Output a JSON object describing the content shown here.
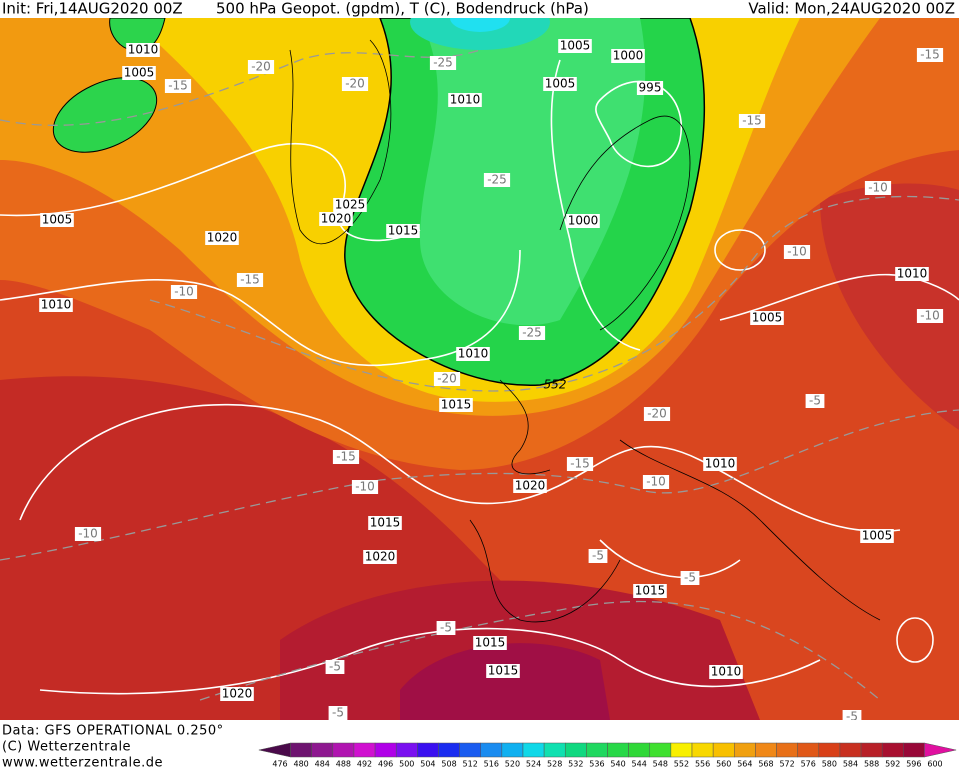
{
  "header": {
    "init": "Init: Fri,14AUG2020 00Z",
    "title": "500 hPa Geopot. (gpdm), T (C), Bodendruck (hPa)",
    "valid": "Valid: Mon,24AUG2020 00Z"
  },
  "footer": {
    "data": "Data: GFS OPERATIONAL 0.250°",
    "copyright": "(C) Wetterzentrale",
    "url": "www.wetterzentrale.de"
  },
  "pressure_labels": [
    "1010",
    "1005",
    "1005",
    "1020",
    "1010",
    "1025",
    "1020",
    "1015",
    "1010",
    "1005",
    "1005",
    "1000",
    "995",
    "1000",
    "1010",
    "1015",
    "1020",
    "1015",
    "1020",
    "1005",
    "1010",
    "1010",
    "1005",
    "1015",
    "1015",
    "1015",
    "1010",
    "1020"
  ],
  "geopotential_label": "552",
  "temperature_labels": [
    "-15",
    "-20",
    "-20",
    "-25",
    "-25",
    "-15",
    "-10",
    "-25",
    "-20",
    "-15",
    "-10",
    "-10",
    "-10",
    "-15",
    "-20",
    "-15",
    "-10",
    "-15",
    "-10",
    "-10",
    "-5",
    "-5",
    "-5",
    "-5",
    "-5",
    "-5",
    "-5"
  ],
  "colorbar": {
    "levels": [
      476,
      480,
      484,
      488,
      492,
      496,
      500,
      504,
      508,
      512,
      516,
      520,
      524,
      528,
      532,
      536,
      540,
      544,
      548,
      552,
      556,
      560,
      564,
      568,
      572,
      576,
      580,
      584,
      588,
      592,
      596,
      600
    ],
    "colors": [
      "#4a0a4a",
      "#6e1470",
      "#8e1890",
      "#b014b0",
      "#d010d0",
      "#b000e8",
      "#7a10f0",
      "#3a10f0",
      "#1a2cf0",
      "#1a5cf0",
      "#1a8cf0",
      "#10b0f0",
      "#10d8e8",
      "#10e0b0",
      "#10d880",
      "#20d860",
      "#28d848",
      "#30d838",
      "#40e030",
      "#f8f000",
      "#f8d800",
      "#f8c000",
      "#f0a010",
      "#f08818",
      "#e87018",
      "#e05818",
      "#d84018",
      "#c83020",
      "#b82028",
      "#a81030",
      "#980838",
      "#e010a0"
    ]
  }
}
